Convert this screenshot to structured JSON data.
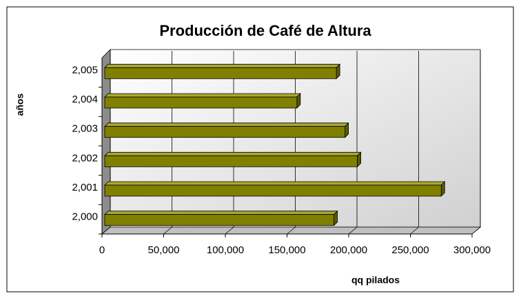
{
  "chart_data": {
    "type": "bar",
    "orientation": "horizontal",
    "title": "Producción de Café de Altura",
    "x_label": "qq pilados",
    "y_label": "años",
    "categories": [
      "2,000",
      "2,001",
      "2,002",
      "2,003",
      "2,004",
      "2,005"
    ],
    "values": [
      188000,
      275000,
      207000,
      197000,
      158000,
      190000
    ],
    "color": "#808000",
    "xlim": [
      0,
      300000
    ],
    "xticks": [
      0,
      {
        "value": 50000,
        "label": "50,000"
      },
      {
        "value": 100000,
        "label": "100,000"
      },
      {
        "value": 150000,
        "label": "150,000"
      },
      {
        "value": 200000,
        "label": "200,000"
      },
      {
        "value": 250000,
        "label": "250,000"
      },
      {
        "value": 300000,
        "label": "300,000"
      }
    ],
    "grid": true
  }
}
